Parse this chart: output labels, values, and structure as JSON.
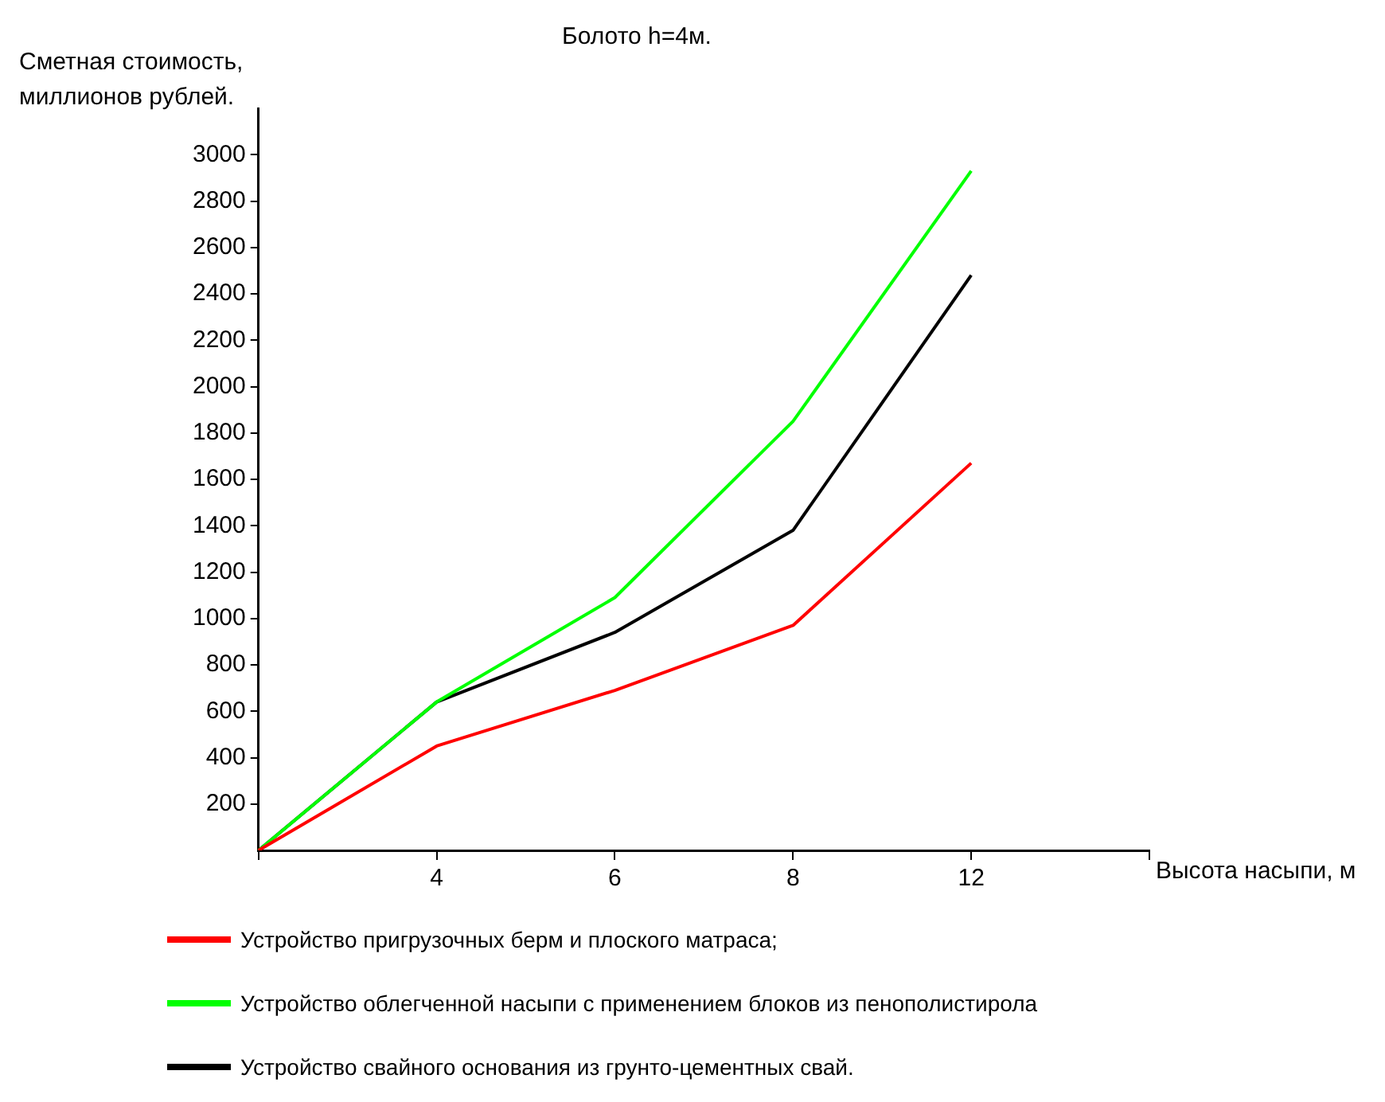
{
  "chart_data": {
    "type": "line",
    "title": "Болото h=4м.",
    "xlabel": "Высота насыпи, м",
    "ylabel": "Сметная стоимость, миллионов рублей.",
    "categories": [
      null,
      "4",
      "6",
      "8",
      "12",
      null
    ],
    "series": [
      {
        "name": "Устройство пригрузочных берм и плоского матраса;",
        "color": "#ff0000",
        "values": [
          0,
          450,
          690,
          970,
          1670,
          null
        ]
      },
      {
        "name": "Устройство облегченной насыпи с применением блоков из пенополистирола",
        "color": "#00ff00",
        "values": [
          0,
          640,
          1090,
          1850,
          2930,
          null
        ]
      },
      {
        "name": "Устройство свайного основания из грунто-цементных свай.",
        "color": "#000000",
        "values": [
          0,
          640,
          940,
          1380,
          2480,
          null
        ]
      }
    ],
    "ylim": [
      0,
      3200
    ],
    "yticks": [
      200,
      400,
      600,
      800,
      1000,
      1200,
      1400,
      1600,
      1800,
      2000,
      2200,
      2400,
      2600,
      2800,
      3000
    ],
    "grid": false,
    "legend": "bottom",
    "marker": "none",
    "line_style": "solid"
  }
}
